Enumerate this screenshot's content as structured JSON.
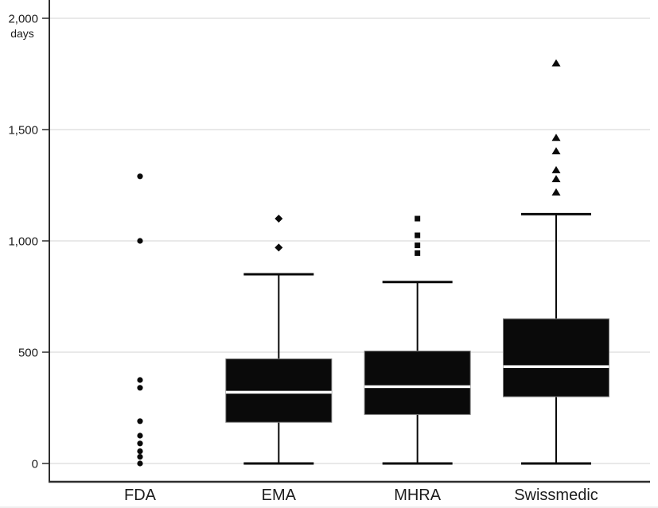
{
  "chart_data": {
    "type": "boxplot",
    "title": "",
    "xlabel": "",
    "ylabel": "days",
    "categories": [
      "FDA",
      "EMA",
      "MHRA",
      "Swissmedic"
    ],
    "ylim": [
      0,
      2080
    ],
    "yticks": [
      0,
      500,
      1000,
      1500,
      2000
    ],
    "ytick_labels": [
      "0",
      "500",
      "1,000",
      "1,500",
      "2,000"
    ],
    "grid": "horizontal",
    "legend": "none",
    "series": [
      {
        "name": "FDA",
        "marker": "circle",
        "box": null,
        "points": [
          1290,
          1000,
          375,
          340,
          190,
          125,
          90,
          55,
          30,
          0
        ],
        "outliers": []
      },
      {
        "name": "EMA",
        "marker": "diamond",
        "box": {
          "whisker_low": 0,
          "q1": 185,
          "median": 320,
          "q3": 470,
          "whisker_high": 850
        },
        "points": [],
        "outliers": [
          970,
          1100
        ]
      },
      {
        "name": "MHRA",
        "marker": "square",
        "box": {
          "whisker_low": 0,
          "q1": 220,
          "median": 345,
          "q3": 505,
          "whisker_high": 815
        },
        "points": [],
        "outliers": [
          945,
          980,
          1025,
          1100
        ]
      },
      {
        "name": "Swissmedic",
        "marker": "triangle",
        "box": {
          "whisker_low": 0,
          "q1": 300,
          "median": 435,
          "q3": 650,
          "whisker_high": 1120
        },
        "points": [],
        "outliers": [
          1220,
          1280,
          1320,
          1405,
          1465,
          1800
        ]
      }
    ],
    "colors": {
      "box_fill": "#0a0a0a",
      "box_stroke": "#7a7a7a",
      "median_line": "#ffffff",
      "marker": "#0a0a0a",
      "axis": "#2e2e2e",
      "gridline": "#e9e9e9",
      "text": "#1c1c1c"
    }
  }
}
